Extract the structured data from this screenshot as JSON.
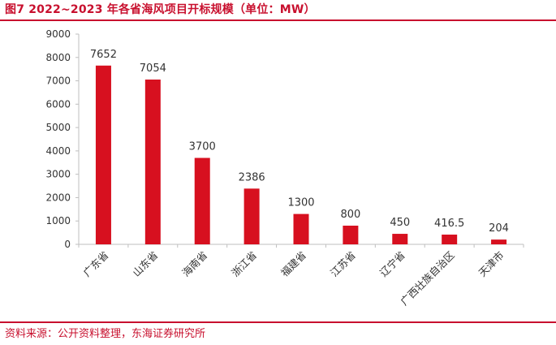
{
  "title": "图7  2022~2023 年各省海风项目开标规模（单位：MW）",
  "source": "资料来源：公开资料整理，东海证券研究所",
  "colors": {
    "accent": "#c8102e",
    "bar": "#d7101f",
    "axis": "#bfbfbf",
    "text": "#333333"
  },
  "chart_data": {
    "type": "bar",
    "title": "图7  2022~2023 年各省海风项目开标规模（单位：MW）",
    "xlabel": "",
    "ylabel": "",
    "ylim": [
      0,
      9000
    ],
    "yticks": [
      0,
      1000,
      2000,
      3000,
      4000,
      5000,
      6000,
      7000,
      8000,
      9000
    ],
    "grid": false,
    "categories": [
      "广东省",
      "山东省",
      "海南省",
      "浙江省",
      "福建省",
      "江苏省",
      "辽宁省",
      "广西壮族自治区",
      "天津市"
    ],
    "values": [
      7652,
      7054,
      3700,
      2386,
      1300,
      800,
      450,
      416.5,
      204
    ],
    "data_labels": [
      "7652",
      "7054",
      "3700",
      "2386",
      "1300",
      "800",
      "450",
      "416.5",
      "204"
    ]
  }
}
